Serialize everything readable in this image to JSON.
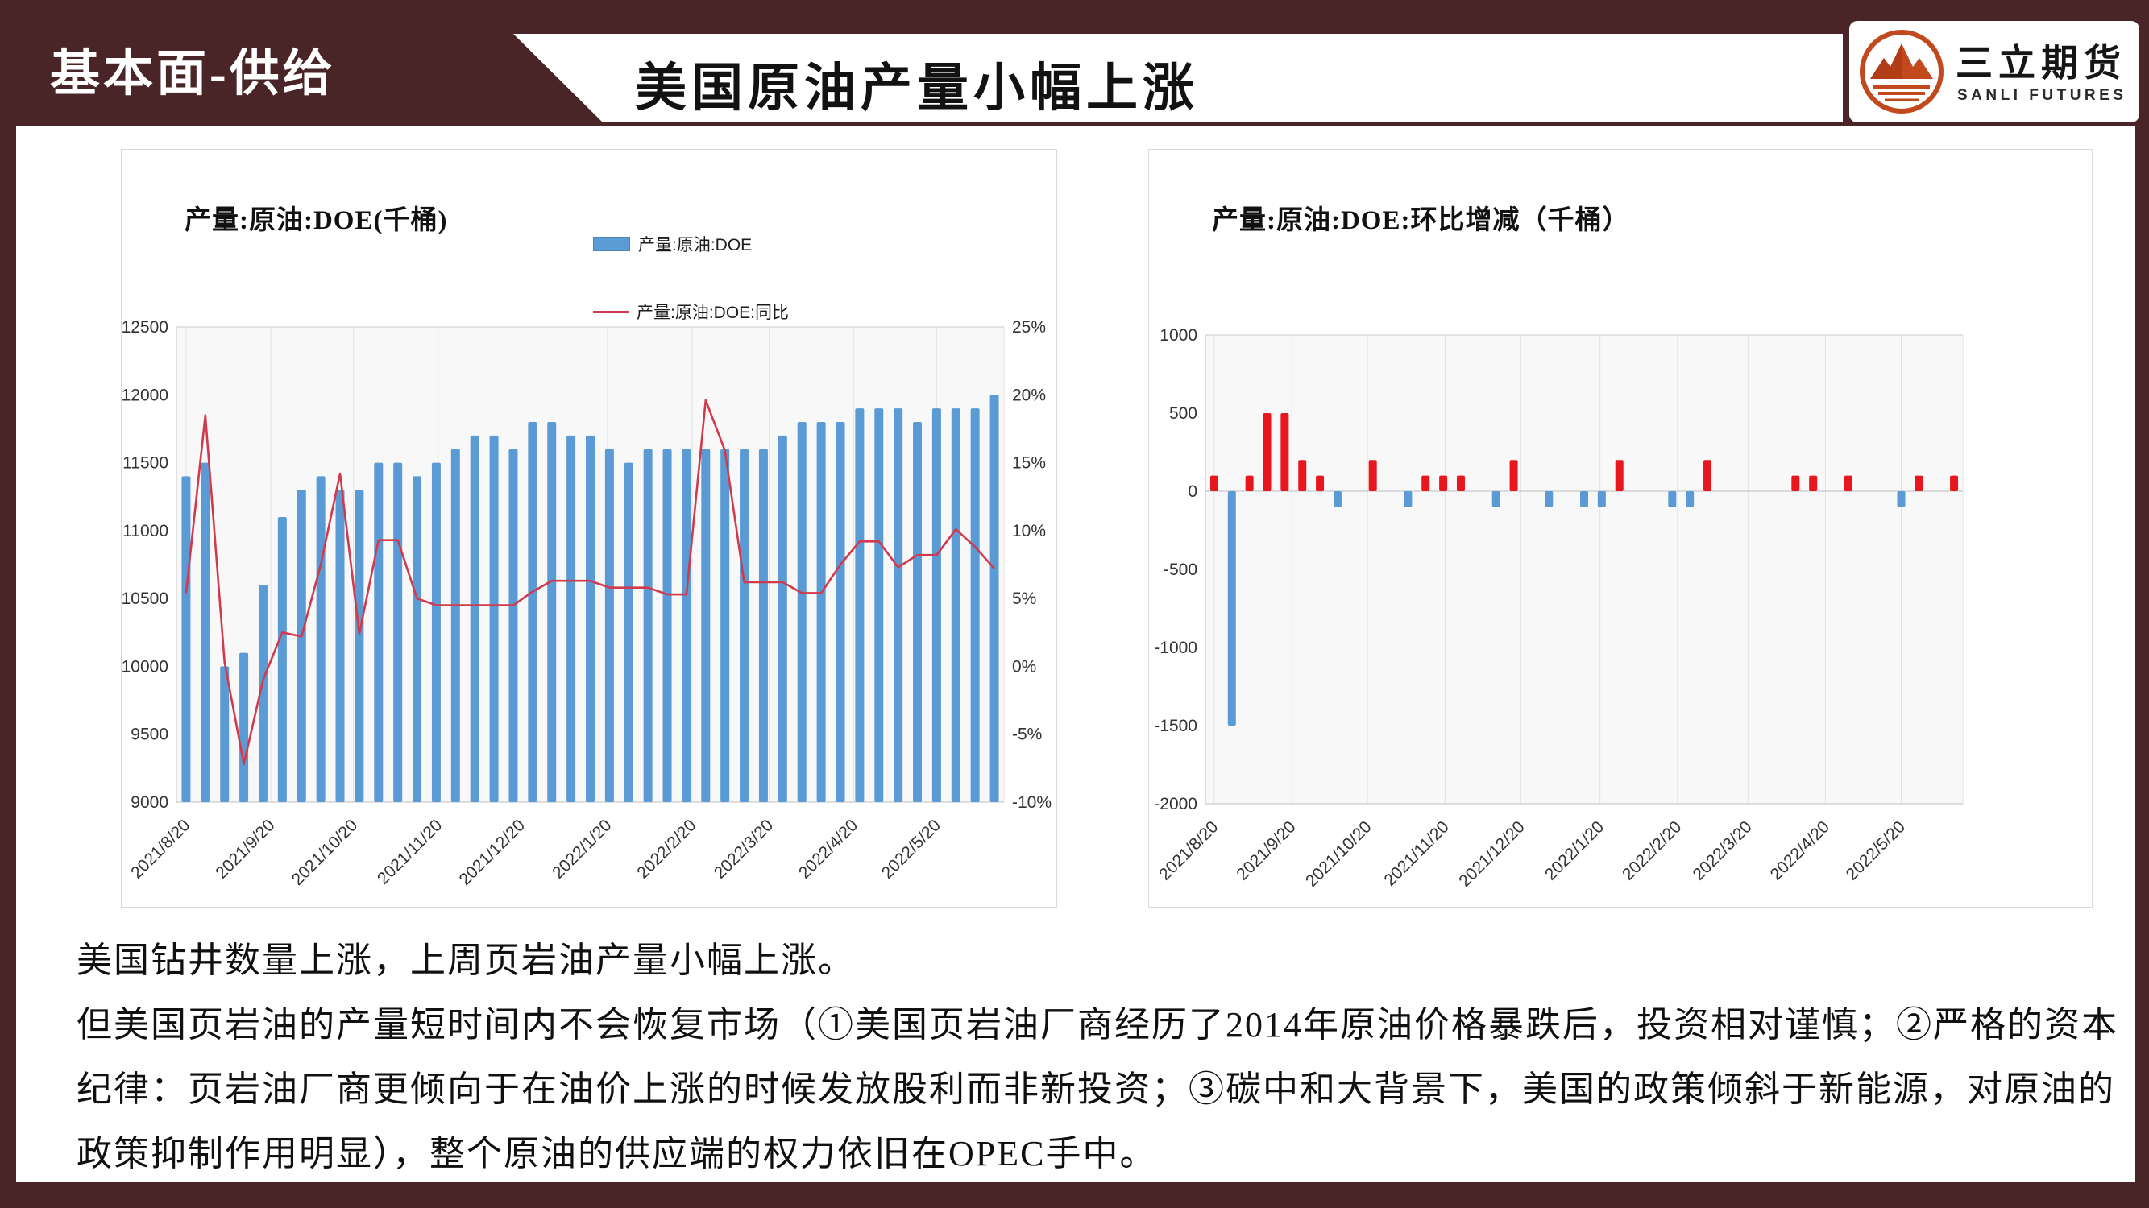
{
  "header": {
    "section_label": "基本面-供给",
    "title": "美国原油产量小幅上涨",
    "logo": {
      "name_cn": "三立期货",
      "name_en": "SANLI FUTURES"
    }
  },
  "commentary": {
    "lines": [
      "美国钻井数量上涨，上周页岩油产量小幅上涨。",
      "但美国页岩油的产量短时间内不会恢复市场（①美国页岩油厂商经历了2014年原油价格暴跌后，投资相对谨慎；②严格的资本",
      "纪律：页岩油厂商更倾向于在油价上涨的时候发放股利而非新投资；③碳中和大背景下，美国的政策倾斜于新能源，对原油的",
      "政策抑制作用明显），整个原油的供应端的权力依旧在OPEC手中。"
    ]
  },
  "colors": {
    "maroon": "#4a2528",
    "bar_blue": "#5b9bd5",
    "line_red": "#d13a4c",
    "bar_red": "#e8161d",
    "logo_orange": "#c2481d",
    "gridline": "#e2e2e2",
    "plot_bg": "#f8f8f8"
  },
  "chart_data": [
    {
      "type": "bar+line",
      "title": "产量:原油:DOE(千桶)",
      "legend": [
        {
          "label": "产量:原油:DOE",
          "marker": "bar",
          "color": "#5b9bd5"
        },
        {
          "label": "产量:原油:DOE:同比",
          "marker": "line",
          "color": "#d13a4c"
        }
      ],
      "x_tick_labels": [
        "2021/8/20",
        "2021/9/20",
        "2021/10/20",
        "2021/11/20",
        "2021/12/20",
        "2022/1/20",
        "2022/2/20",
        "2022/3/20",
        "2022/4/20",
        "2022/5/20"
      ],
      "tick_week_indices": [
        0,
        4.4,
        8.7,
        13.1,
        17.4,
        21.9,
        26.3,
        30.3,
        34.7,
        39
      ],
      "left_axis": {
        "min": 9000,
        "max": 12500,
        "step": 500
      },
      "right_axis": {
        "min": -10,
        "max": 25,
        "step": 5,
        "unit": "%"
      },
      "grid": true,
      "legend_position": "top-right",
      "series": [
        {
          "name": "产量:原油:DOE",
          "type": "bar",
          "axis": "left",
          "color": "#5b9bd5",
          "values": [
            11400,
            11500,
            10000,
            10100,
            10600,
            11100,
            11300,
            11400,
            11300,
            11300,
            11500,
            11500,
            11400,
            11500,
            11600,
            11700,
            11700,
            11600,
            11800,
            11800,
            11700,
            11700,
            11600,
            11500,
            11600,
            11600,
            11600,
            11600,
            11600,
            11600,
            11600,
            11700,
            11800,
            11800,
            11800,
            11900,
            11900,
            11900,
            11800,
            11900,
            11900,
            11900,
            12000
          ]
        },
        {
          "name": "产量:原油:DOE:同比",
          "type": "line",
          "axis": "right",
          "color": "#d13a4c",
          "values_pct": [
            5.4,
            18.5,
            0.3,
            -7.2,
            -1.0,
            2.5,
            2.2,
            7.5,
            14.2,
            2.4,
            9.3,
            9.3,
            5.0,
            4.5,
            4.5,
            4.5,
            4.5,
            4.5,
            5.5,
            6.3,
            6.3,
            6.3,
            5.8,
            5.8,
            5.8,
            5.3,
            5.3,
            19.6,
            15.9,
            6.2,
            6.2,
            6.2,
            5.4,
            5.4,
            7.5,
            9.2,
            9.2,
            7.3,
            8.2,
            8.2,
            10.1,
            8.8,
            7.2
          ]
        }
      ]
    },
    {
      "type": "bar",
      "title": "产量:原油:DOE:环比增减（千桶）",
      "x_tick_labels": [
        "2021/8/20",
        "2021/9/20",
        "2021/10/20",
        "2021/11/20",
        "2021/12/20",
        "2022/1/20",
        "2022/2/20",
        "2022/3/20",
        "2022/4/20",
        "2022/5/20"
      ],
      "tick_week_indices": [
        0,
        4.4,
        8.7,
        13.1,
        17.4,
        21.9,
        26.3,
        30.3,
        34.7,
        39
      ],
      "y_axis": {
        "min": -2000,
        "max": 1000,
        "step": 500
      },
      "positive_color": "#e8161d",
      "negative_color": "#5b9bd5",
      "grid": true,
      "values": [
        100,
        -1500,
        100,
        500,
        500,
        200,
        100,
        -100,
        0,
        200,
        0,
        -100,
        100,
        100,
        100,
        0,
        -100,
        200,
        0,
        -100,
        0,
        -100,
        -100,
        200,
        0,
        0,
        -100,
        -100,
        200,
        0,
        0,
        0,
        0,
        100,
        100,
        0,
        100,
        0,
        0,
        -100,
        100,
        0,
        100
      ]
    }
  ]
}
